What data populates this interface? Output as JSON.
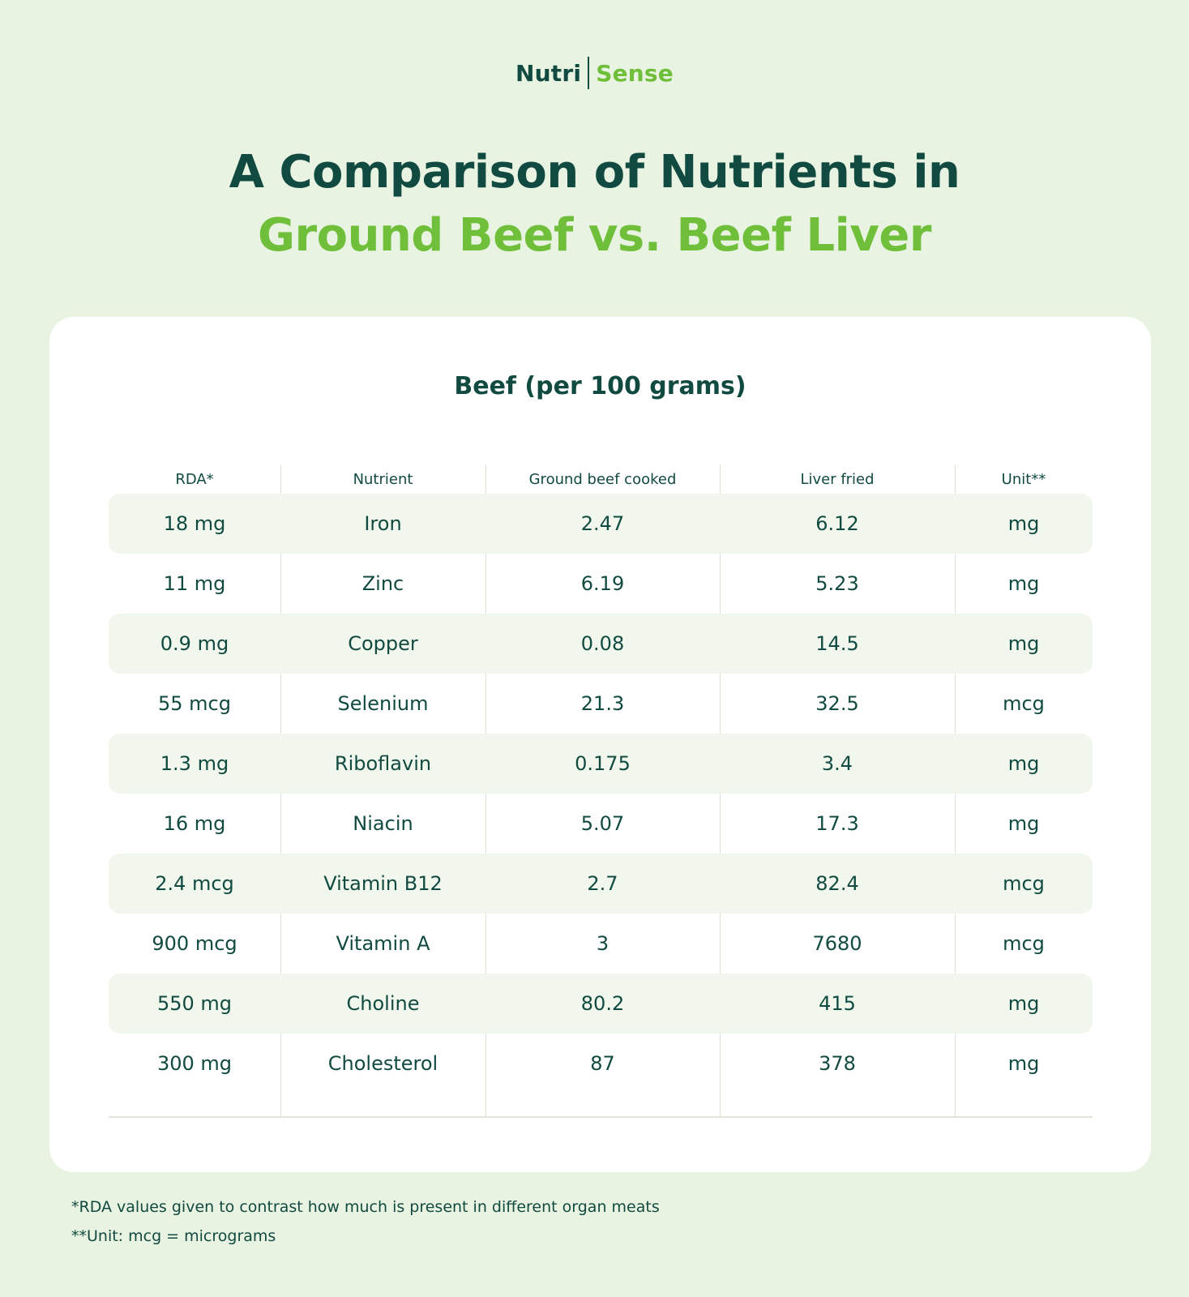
{
  "brand": {
    "part1": "Nutri",
    "part2": "Sense"
  },
  "title": {
    "line1": "A Comparison of Nutrients in",
    "line2": "Ground Beef vs. Beef Liver"
  },
  "table": {
    "title": "Beef (per 100 grams)",
    "headers": [
      "RDA*",
      "Nutrient",
      "Ground beef cooked",
      "Liver fried",
      "Unit**"
    ],
    "rows": [
      [
        "18 mg",
        "Iron",
        "2.47",
        "6.12",
        "mg"
      ],
      [
        "11 mg",
        "Zinc",
        "6.19",
        "5.23",
        "mg"
      ],
      [
        "0.9 mg",
        "Copper",
        "0.08",
        "14.5",
        "mg"
      ],
      [
        "55 mcg",
        "Selenium",
        "21.3",
        "32.5",
        "mcg"
      ],
      [
        "1.3 mg",
        "Riboflavin",
        "0.175",
        "3.4",
        "mg"
      ],
      [
        "16 mg",
        "Niacin",
        "5.07",
        "17.3",
        "mg"
      ],
      [
        "2.4 mcg",
        "Vitamin B12",
        "2.7",
        "82.4",
        "mcg"
      ],
      [
        "900 mcg",
        "Vitamin A",
        "3",
        "7680",
        "mcg"
      ],
      [
        "550 mg",
        "Choline",
        "80.2",
        "415",
        "mg"
      ],
      [
        "300 mg",
        "Cholesterol",
        "87",
        "378",
        "mg"
      ]
    ]
  },
  "footnotes": [
    "*RDA values given to contrast how much is present in different organ meats",
    "**Unit: mcg = micrograms"
  ],
  "colors": {
    "dark_green": "#114a40",
    "light_green": "#6fbf3b",
    "background": "#e9f3e1"
  }
}
